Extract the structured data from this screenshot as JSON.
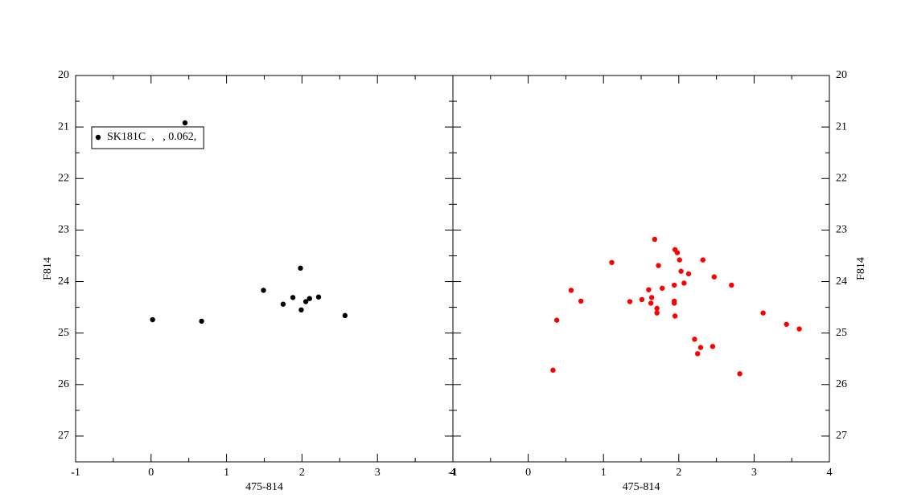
{
  "chart_data": [
    {
      "type": "scatter",
      "xlabel": "475-814",
      "ylabel": "F814",
      "y_axis_side": "left",
      "xlim": [
        -1,
        4
      ],
      "xticks": [
        -1,
        0,
        1,
        2,
        3,
        4
      ],
      "ylim": [
        27.5,
        20
      ],
      "yticks": [
        20,
        21,
        22,
        23,
        24,
        25,
        26,
        27
      ],
      "legend": "upper left",
      "series": [
        {
          "name": "SK181C  ,   , 0.062,",
          "color": "#000000",
          "x": [
            0.45,
            0.02,
            0.67,
            1.49,
            1.75,
            1.88,
            1.98,
            1.99,
            2.05,
            2.1,
            2.22,
            2.57
          ],
          "values": [
            20.92,
            24.74,
            24.77,
            24.17,
            24.44,
            24.31,
            23.74,
            24.55,
            24.39,
            24.33,
            24.3,
            24.66
          ]
        }
      ]
    },
    {
      "type": "scatter",
      "xlabel": "475-814",
      "ylabel": "F814",
      "y_axis_side": "right",
      "xlim": [
        -1,
        4
      ],
      "xticks": [
        -1,
        0,
        1,
        2,
        3,
        4
      ],
      "ylim": [
        27.5,
        20
      ],
      "yticks": [
        20,
        21,
        22,
        23,
        24,
        25,
        26,
        27
      ],
      "series": [
        {
          "color": "#ff0000",
          "x": [
            0.33,
            0.38,
            0.57,
            0.7,
            1.11,
            1.35,
            1.51,
            1.6,
            1.63,
            1.64,
            1.68,
            1.71,
            1.71,
            1.73,
            1.78,
            1.94,
            1.94,
            1.94,
            1.95,
            1.95,
            1.98,
            2.01,
            2.03,
            2.07,
            2.13,
            2.21,
            2.25,
            2.29,
            2.32,
            2.45,
            2.47,
            2.7,
            2.81,
            3.12,
            3.43,
            3.6
          ],
          "values": [
            25.72,
            24.75,
            24.17,
            24.38,
            23.63,
            24.39,
            24.35,
            24.16,
            24.42,
            24.31,
            23.18,
            24.52,
            24.61,
            23.69,
            24.13,
            24.07,
            24.38,
            24.42,
            24.67,
            23.38,
            23.44,
            23.58,
            23.8,
            24.03,
            23.85,
            25.12,
            25.4,
            25.28,
            23.58,
            25.26,
            23.91,
            24.07,
            25.79,
            24.61,
            24.83,
            24.92
          ]
        }
      ]
    }
  ]
}
